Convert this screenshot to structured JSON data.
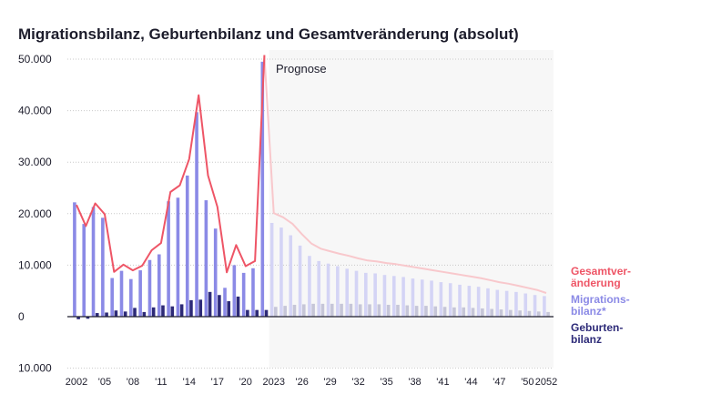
{
  "chart_data": {
    "type": "bar",
    "title": "Migrationsbilanz, Geburtenbilanz und Gesamtveränderung (absolut)",
    "forecast_label": "Prognose",
    "y_tick_labels": [
      "50.000",
      "40.000",
      "30.000",
      "20.000",
      "10.000",
      "0",
      "10.000"
    ],
    "y_tick_values": [
      50000,
      40000,
      30000,
      20000,
      10000,
      0,
      -10000
    ],
    "ylim": [
      -10000,
      50000
    ],
    "x_tick_labels": [
      {
        "year": 2002,
        "label": "2002"
      },
      {
        "year": 2005,
        "label": "'05"
      },
      {
        "year": 2008,
        "label": "'08"
      },
      {
        "year": 2011,
        "label": "'11"
      },
      {
        "year": 2014,
        "label": "'14"
      },
      {
        "year": 2017,
        "label": "'17"
      },
      {
        "year": 2020,
        "label": "'20"
      },
      {
        "year": 2023,
        "label": "2023"
      },
      {
        "year": 2026,
        "label": "'26"
      },
      {
        "year": 2029,
        "label": "'29"
      },
      {
        "year": 2032,
        "label": "'32"
      },
      {
        "year": 2035,
        "label": "'35"
      },
      {
        "year": 2038,
        "label": "'38"
      },
      {
        "year": 2041,
        "label": "'41"
      },
      {
        "year": 2044,
        "label": "'44"
      },
      {
        "year": 2047,
        "label": "'47"
      },
      {
        "year": 2050,
        "label": "'50"
      },
      {
        "year": 2052,
        "label": "2052"
      }
    ],
    "forecast_start_year": 2023,
    "years": [
      2002,
      2003,
      2004,
      2005,
      2006,
      2007,
      2008,
      2009,
      2010,
      2011,
      2012,
      2013,
      2014,
      2015,
      2016,
      2017,
      2018,
      2019,
      2020,
      2021,
      2022,
      2023,
      2024,
      2025,
      2026,
      2027,
      2028,
      2029,
      2030,
      2031,
      2032,
      2033,
      2034,
      2035,
      2036,
      2037,
      2038,
      2039,
      2040,
      2041,
      2042,
      2043,
      2044,
      2045,
      2046,
      2047,
      2048,
      2049,
      2050,
      2051,
      2052
    ],
    "series": [
      {
        "name": "Migrationsbilanz*",
        "legend": [
          "Migrations-",
          "bilanz*"
        ],
        "color": "#8b8ae6",
        "forecast_color": "#d4d4f5",
        "values": [
          22200,
          18000,
          21300,
          19200,
          7500,
          8900,
          7300,
          9000,
          11000,
          12100,
          22400,
          23100,
          27400,
          39700,
          22600,
          17100,
          5600,
          10000,
          8500,
          9400,
          49500,
          18200,
          17300,
          15800,
          13800,
          11800,
          10800,
          10300,
          9800,
          9300,
          8900,
          8500,
          8400,
          8100,
          7900,
          7700,
          7400,
          7200,
          7000,
          6700,
          6500,
          6200,
          6000,
          5800,
          5500,
          5200,
          5000,
          4800,
          4500,
          4200,
          4000
        ]
      },
      {
        "name": "Geburtenbilanz",
        "legend": [
          "Geburten-",
          "bilanz"
        ],
        "color": "#2d2a78",
        "forecast_color": "#c6c6d8",
        "values": [
          -500,
          -400,
          700,
          800,
          1200,
          1000,
          1700,
          900,
          1800,
          2200,
          2000,
          2400,
          3200,
          3300,
          4800,
          4200,
          3000,
          3900,
          1300,
          1300,
          1300,
          1900,
          2100,
          2300,
          2400,
          2500,
          2500,
          2500,
          2500,
          2500,
          2400,
          2400,
          2400,
          2300,
          2300,
          2200,
          2100,
          2100,
          2000,
          1900,
          1800,
          1800,
          1700,
          1600,
          1500,
          1400,
          1300,
          1200,
          1100,
          1000,
          900
        ]
      },
      {
        "name": "Gesamtveränderung",
        "legend": [
          "Gesamtver-",
          "änderung"
        ],
        "color": "#ee5566",
        "forecast_color": "#f8c8cc",
        "values": [
          21700,
          17600,
          22000,
          19900,
          8700,
          10100,
          9000,
          9900,
          12900,
          14300,
          24200,
          25500,
          30600,
          43000,
          27400,
          21300,
          8600,
          13900,
          9800,
          10800,
          50800,
          20100,
          19300,
          18000,
          16000,
          14200,
          13200,
          12700,
          12200,
          11800,
          11300,
          10900,
          10700,
          10400,
          10200,
          9900,
          9600,
          9300,
          9000,
          8700,
          8400,
          8100,
          7800,
          7500,
          7100,
          6700,
          6400,
          6000,
          5600,
          5200,
          4600
        ]
      }
    ]
  }
}
